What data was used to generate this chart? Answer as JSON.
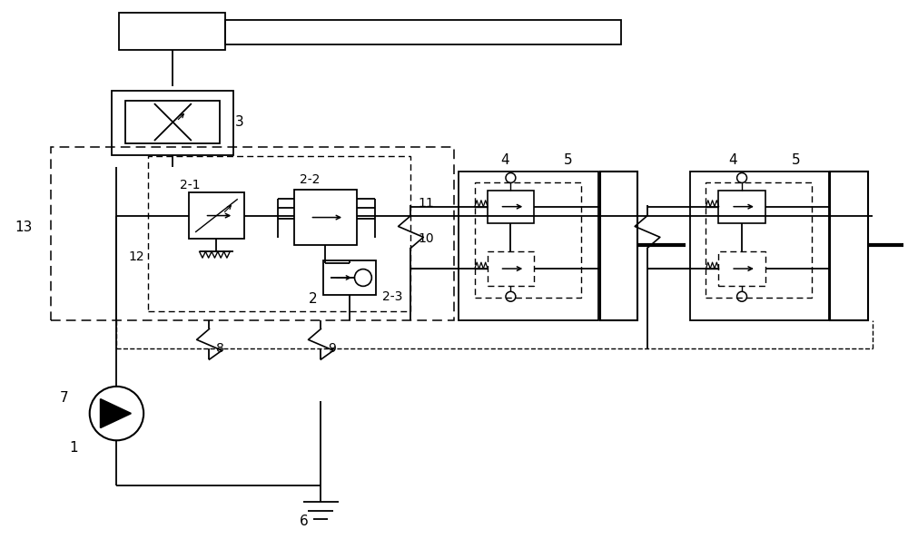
{
  "bg_color": "#ffffff",
  "lc": "#000000",
  "figsize": [
    10.0,
    6.05
  ],
  "dpi": 100
}
